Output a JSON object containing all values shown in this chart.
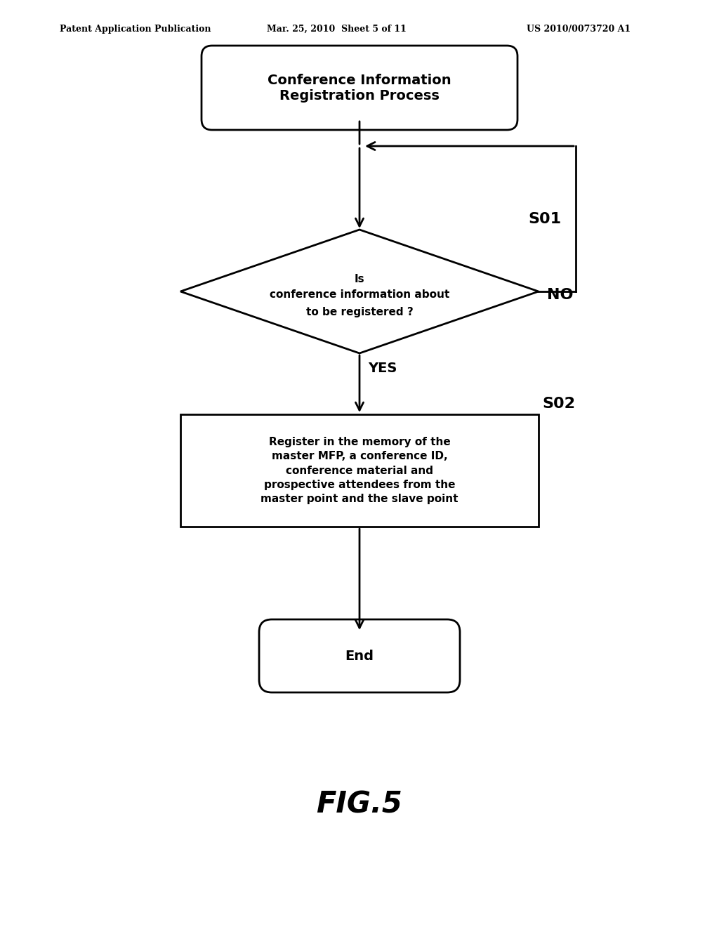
{
  "bg_color": "#ffffff",
  "header_left": "Patent Application Publication",
  "header_mid": "Mar. 25, 2010  Sheet 5 of 11",
  "header_right": "US 2010/0073720 A1",
  "start_label": "Conference Information\nRegistration Process",
  "diamond_line1": "Is",
  "diamond_line2": "conference information about",
  "diamond_line3": "to be registered ?",
  "diamond_step": "S01",
  "no_label": "NO",
  "yes_label": "YES",
  "rect_line1": "Register in the memory of the",
  "rect_line2": "master MFP, a conference ID,",
  "rect_line3": "conference material and",
  "rect_line4": "prospective attendees from the",
  "rect_line5": "master point and the slave point",
  "rect_step": "S02",
  "end_label": "End",
  "fig_label": "FIG.5"
}
